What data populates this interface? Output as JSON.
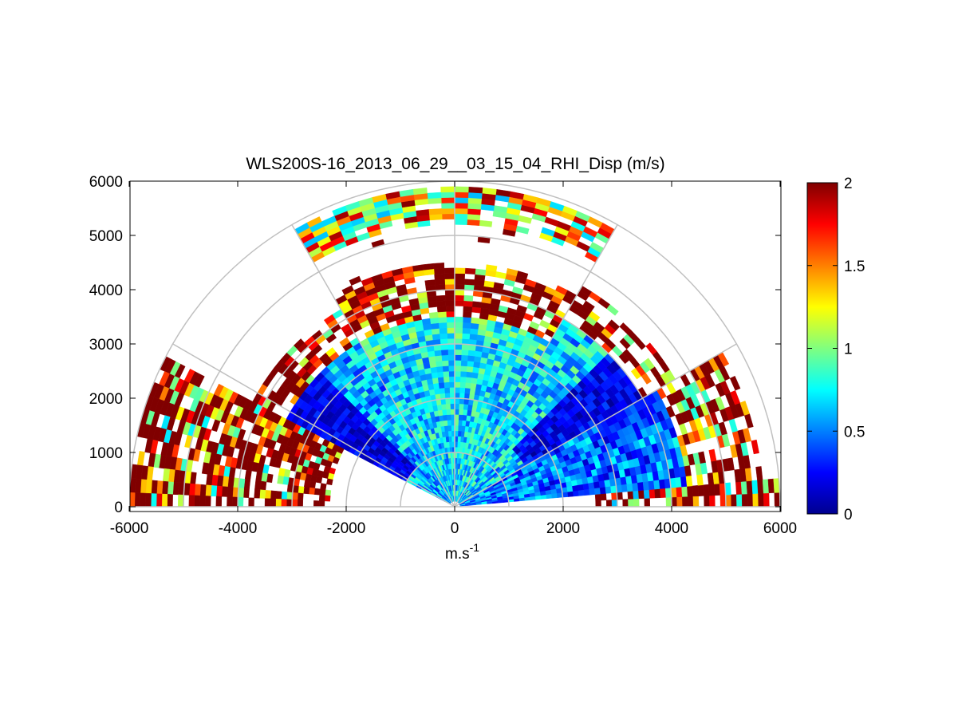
{
  "chart_data": {
    "type": "heatmap",
    "subtype": "polar-rhi-scan",
    "title": "WLS200S-16_2013_06_29__03_15_04_RHI_Disp (m/s)",
    "xlabel": "m.s",
    "xlabel_superscript": "-1",
    "ylabel": "",
    "xlim": [
      -6000,
      6000
    ],
    "ylim": [
      0,
      6000
    ],
    "x_ticks": [
      -6000,
      -4000,
      -2000,
      0,
      2000,
      4000,
      6000
    ],
    "x_tick_labels": [
      "-6000",
      "-4000",
      "-2000",
      "0",
      "2000",
      "4000",
      "6000"
    ],
    "y_ticks": [
      0,
      1000,
      2000,
      3000,
      4000,
      5000,
      6000
    ],
    "y_tick_labels": [
      "0",
      "1000",
      "2000",
      "3000",
      "4000",
      "5000",
      "6000"
    ],
    "polar_grid": {
      "range_rings": [
        1000,
        2000,
        3000,
        4000,
        5000,
        6000
      ],
      "spokes_deg": [
        0,
        30,
        60,
        90,
        120,
        150,
        180
      ]
    },
    "colorbar": {
      "min": 0,
      "max": 2,
      "colormap": "jet",
      "ticks": [
        0,
        0.5,
        1,
        1.5,
        2
      ],
      "tick_labels": [
        "0",
        "0.5",
        "1",
        "1.5",
        "2"
      ]
    },
    "max_range": 6000,
    "gate_size": 100,
    "angle_step_deg": 2.5,
    "approximate_field_regions": [
      {
        "az_deg": [
          0,
          6
        ],
        "range": [
          2500,
          6000
        ],
        "level": "high"
      },
      {
        "az_deg": [
          7,
          30
        ],
        "range": [
          1500,
          4500
        ],
        "level": "low"
      },
      {
        "az_deg": [
          7,
          30
        ],
        "range": [
          4500,
          5800
        ],
        "level": "high"
      },
      {
        "az_deg": [
          30,
          60
        ],
        "range": [
          1000,
          4000
        ],
        "level": "low-mid"
      },
      {
        "az_deg": [
          30,
          60
        ],
        "range": [
          4000,
          4600
        ],
        "level": "high"
      },
      {
        "az_deg": [
          60,
          120
        ],
        "range": [
          0,
          3200
        ],
        "level": "mid"
      },
      {
        "az_deg": [
          60,
          120
        ],
        "range": [
          3500,
          4400
        ],
        "level": "high"
      },
      {
        "az_deg": [
          60,
          120
        ],
        "range": [
          4400,
          5200
        ],
        "level": "none"
      },
      {
        "az_deg": [
          60,
          120
        ],
        "range": [
          5200,
          6000
        ],
        "level": "mixed"
      },
      {
        "az_deg": [
          120,
          152
        ],
        "range": [
          1000,
          4000
        ],
        "level": "low"
      },
      {
        "az_deg": [
          152,
          178
        ],
        "range": [
          2500,
          6000
        ],
        "level": "high"
      }
    ]
  }
}
